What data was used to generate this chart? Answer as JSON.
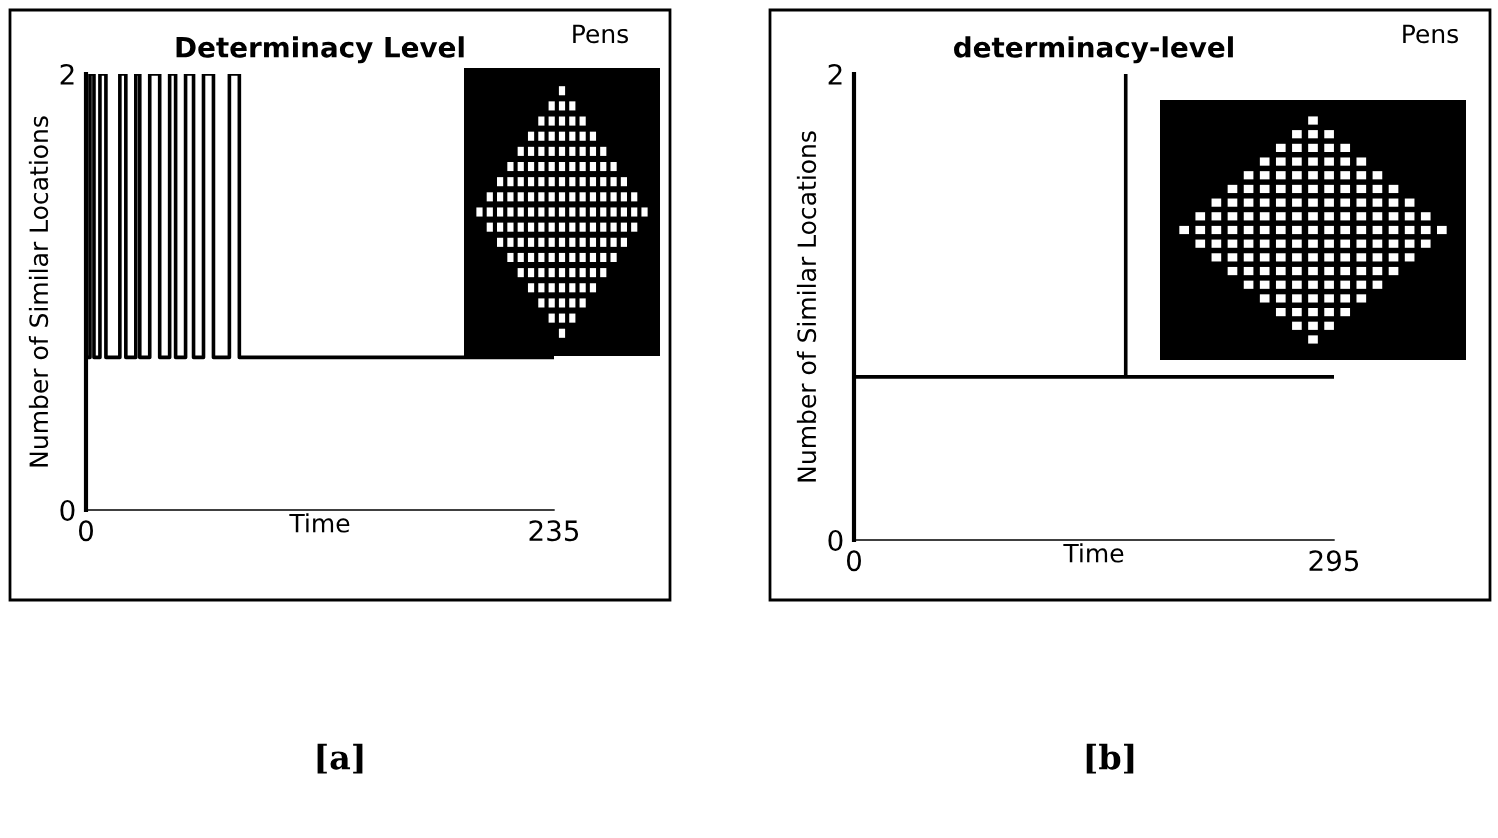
{
  "chart_data": [
    {
      "type": "line",
      "title": "Determinacy Level",
      "xlabel": "Time",
      "ylabel": "Number of Similar Locations",
      "series": [
        {
          "color": "#000000",
          "x": [
            0,
            2,
            2,
            4,
            4,
            7,
            7,
            10,
            10,
            17,
            17,
            20,
            20,
            25,
            25,
            27,
            27,
            32,
            32,
            37,
            37,
            42,
            42,
            45,
            45,
            50,
            50,
            54,
            54,
            59,
            59,
            64,
            64,
            72,
            72,
            77,
            77,
            235
          ],
          "values": [
            0.7,
            0.7,
            2,
            2,
            0.7,
            0.7,
            2,
            2,
            0.7,
            0.7,
            2,
            2,
            0.7,
            0.7,
            2,
            2,
            0.7,
            0.7,
            2,
            2,
            0.7,
            0.7,
            2,
            2,
            0.7,
            0.7,
            2,
            2,
            0.7,
            0.7,
            2,
            2,
            0.7,
            0.7,
            2,
            2,
            0.7,
            0.7
          ]
        }
      ],
      "xlim": [
        0,
        235
      ],
      "ylim": [
        0,
        2
      ],
      "xticks": [
        0,
        235
      ],
      "yticks": [
        0,
        2
      ],
      "grid": false,
      "legend": false,
      "marker": "none",
      "line_style": "solid",
      "annotations": [
        "Pens",
        "[a]"
      ]
    },
    {
      "type": "line",
      "title": "determinacy-level",
      "xlabel": "Time",
      "ylabel": "Number of Similar Locations",
      "series": [
        {
          "color": "#000000",
          "x": [
            0,
            0,
            167,
            167,
            167,
            295
          ],
          "values": [
            2,
            0.7,
            0.7,
            2,
            0.7,
            0.7
          ]
        }
      ],
      "xlim": [
        0,
        295
      ],
      "ylim": [
        0,
        2
      ],
      "xticks": [
        0,
        295
      ],
      "yticks": [
        0,
        2
      ],
      "grid": false,
      "legend": false,
      "marker": "none",
      "line_style": "solid",
      "annotations": [
        "Pens",
        "[b]"
      ]
    }
  ]
}
